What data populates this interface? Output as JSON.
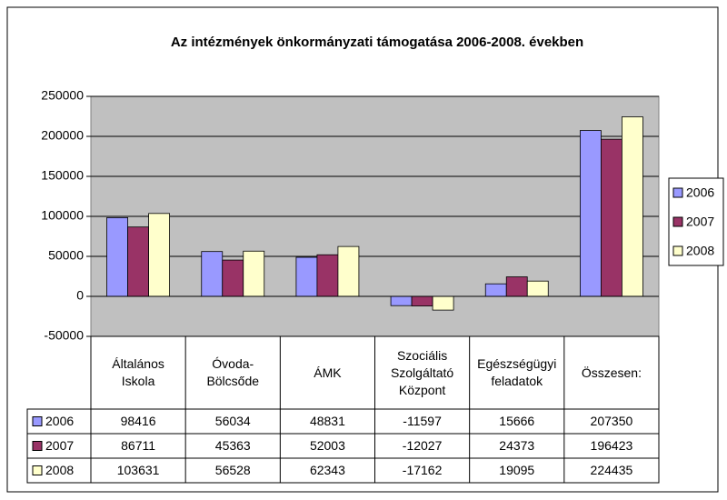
{
  "chart_data": {
    "type": "bar",
    "title": "Az intézmények önkormányzati támogatása 2006-2008. években",
    "categories": [
      "Általános Iskola",
      "Óvoda-Bölcsőde",
      "ÁMK",
      "Szociális Szolgáltató Központ",
      "Egészségügyi feladatok",
      "Összesen:"
    ],
    "series": [
      {
        "name": "2006",
        "color": "#9999ff",
        "values": [
          98416,
          56034,
          48831,
          -11597,
          15666,
          207350
        ]
      },
      {
        "name": "2007",
        "color": "#993366",
        "values": [
          86711,
          45363,
          52003,
          -12027,
          24373,
          196423
        ]
      },
      {
        "name": "2008",
        "color": "#ffffcc",
        "values": [
          103631,
          56528,
          62343,
          -17162,
          19095,
          224435
        ]
      }
    ],
    "ylim": [
      -50000,
      250000
    ],
    "yticks": [
      -50000,
      0,
      50000,
      100000,
      150000,
      200000,
      250000
    ],
    "grid": true,
    "legend": "right",
    "data_table": true
  }
}
